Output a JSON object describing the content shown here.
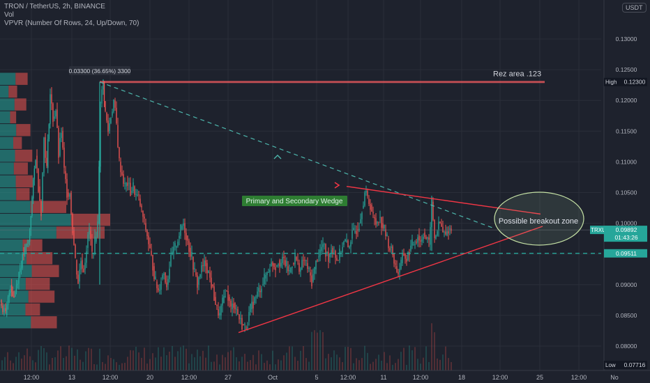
{
  "legend": {
    "symbol_line": "TRON / TetherUS, 2h, BINANCE",
    "vol_line": "Vol",
    "vpvr_line": "VPVR (Number Of Rows, 24, Up/Down, 70)"
  },
  "currency_button": "USDT",
  "chart_data": {
    "type": "candlestick",
    "y_axis": {
      "range": [
        0.0765,
        0.137
      ],
      "tick_labels": [
        "0.13000",
        "0.12500",
        "0.12000",
        "0.11500",
        "0.11000",
        "0.10500",
        "0.10000",
        "0.09500",
        "0.09000",
        "0.08500",
        "0.08000"
      ],
      "tick_values": [
        0.13,
        0.125,
        0.12,
        0.115,
        0.11,
        0.105,
        0.1,
        0.095,
        0.09,
        0.085,
        0.08
      ]
    },
    "x_axis": {
      "tick_labels": [
        "12:00",
        "13",
        "12:00",
        "20",
        "12:00",
        "27",
        "Oct",
        "5",
        "12:00",
        "11",
        "12:00",
        "18",
        "12:00",
        "25",
        "12:00",
        "No"
      ]
    },
    "price_path": [
      [
        0,
        0.0875
      ],
      [
        8,
        0.085
      ],
      [
        15,
        0.09
      ],
      [
        20,
        0.088
      ],
      [
        27,
        0.092
      ],
      [
        34,
        0.095
      ],
      [
        41,
        0.097
      ],
      [
        46,
        0.104
      ],
      [
        51,
        0.111
      ],
      [
        55,
        0.106
      ],
      [
        59,
        0.102
      ],
      [
        63,
        0.114
      ],
      [
        67,
        0.109
      ],
      [
        72,
        0.121
      ],
      [
        76,
        0.117
      ],
      [
        80,
        0.1185
      ],
      [
        84,
        0.111
      ],
      [
        88,
        0.115
      ],
      [
        92,
        0.1085
      ],
      [
        96,
        0.105
      ],
      [
        100,
        0.105
      ],
      [
        104,
        0.099
      ],
      [
        108,
        0.094
      ],
      [
        112,
        0.0905
      ],
      [
        116,
        0.094
      ],
      [
        120,
        0.0925
      ],
      [
        124,
        0.096
      ],
      [
        128,
        0.099
      ],
      [
        132,
        0.095
      ],
      [
        136,
        0.097
      ],
      [
        140,
        0.1
      ],
      [
        144,
        0.1195
      ],
      [
        148,
        0.123
      ],
      [
        151,
        0.118
      ],
      [
        155,
        0.115
      ],
      [
        159,
        0.1175
      ],
      [
        163,
        0.12
      ],
      [
        167,
        0.116
      ],
      [
        171,
        0.11
      ],
      [
        175,
        0.108
      ],
      [
        179,
        0.106
      ],
      [
        183,
        0.1065
      ],
      [
        187,
        0.105
      ],
      [
        191,
        0.106
      ],
      [
        195,
        0.1045
      ],
      [
        199,
        0.104
      ],
      [
        203,
        0.102
      ],
      [
        207,
        0.1
      ],
      [
        211,
        0.098
      ],
      [
        215,
        0.0955
      ],
      [
        219,
        0.093
      ],
      [
        223,
        0.0905
      ],
      [
        227,
        0.089
      ],
      [
        231,
        0.091
      ],
      [
        235,
        0.092
      ],
      [
        239,
        0.09
      ],
      [
        243,
        0.093
      ],
      [
        247,
        0.095
      ],
      [
        251,
        0.096
      ],
      [
        255,
        0.0975
      ],
      [
        259,
        0.099
      ],
      [
        263,
        0.1
      ],
      [
        267,
        0.098
      ],
      [
        271,
        0.096
      ],
      [
        275,
        0.0945
      ],
      [
        279,
        0.092
      ],
      [
        283,
        0.09
      ],
      [
        287,
        0.092
      ],
      [
        291,
        0.093
      ],
      [
        295,
        0.0935
      ],
      [
        299,
        0.092
      ],
      [
        303,
        0.09
      ],
      [
        307,
        0.088
      ],
      [
        311,
        0.086
      ],
      [
        315,
        0.085
      ],
      [
        319,
        0.087
      ],
      [
        323,
        0.089
      ],
      [
        327,
        0.088
      ],
      [
        331,
        0.086
      ],
      [
        335,
        0.087
      ],
      [
        339,
        0.086
      ],
      [
        343,
        0.0845
      ],
      [
        347,
        0.0835
      ],
      [
        351,
        0.083
      ],
      [
        355,
        0.084
      ],
      [
        359,
        0.086
      ],
      [
        363,
        0.087
      ],
      [
        367,
        0.088
      ],
      [
        371,
        0.089
      ],
      [
        375,
        0.09
      ],
      [
        379,
        0.091
      ],
      [
        383,
        0.092
      ],
      [
        387,
        0.093
      ],
      [
        391,
        0.0935
      ],
      [
        395,
        0.093
      ],
      [
        399,
        0.094
      ],
      [
        403,
        0.0935
      ],
      [
        407,
        0.094
      ],
      [
        411,
        0.093
      ],
      [
        415,
        0.092
      ],
      [
        419,
        0.0935
      ],
      [
        423,
        0.0945
      ],
      [
        427,
        0.0935
      ],
      [
        431,
        0.0925
      ],
      [
        435,
        0.094
      ],
      [
        439,
        0.0935
      ],
      [
        443,
        0.092
      ],
      [
        447,
        0.0905
      ],
      [
        451,
        0.0925
      ],
      [
        455,
        0.0945
      ],
      [
        459,
        0.0955
      ],
      [
        463,
        0.0965
      ],
      [
        467,
        0.095
      ],
      [
        471,
        0.0945
      ],
      [
        475,
        0.096
      ],
      [
        479,
        0.0955
      ],
      [
        483,
        0.094
      ],
      [
        487,
        0.095
      ],
      [
        491,
        0.0965
      ],
      [
        495,
        0.097
      ],
      [
        499,
        0.096
      ],
      [
        503,
        0.0975
      ],
      [
        507,
        0.0985
      ],
      [
        511,
        0.099
      ],
      [
        515,
        0.1
      ],
      [
        519,
        0.1025
      ],
      [
        523,
        0.105
      ],
      [
        527,
        0.104
      ],
      [
        531,
        0.103
      ],
      [
        535,
        0.101
      ],
      [
        539,
        0.1
      ],
      [
        543,
        0.101
      ],
      [
        547,
        0.1
      ],
      [
        551,
        0.099
      ],
      [
        555,
        0.0975
      ],
      [
        559,
        0.096
      ],
      [
        563,
        0.095
      ],
      [
        567,
        0.093
      ],
      [
        571,
        0.092
      ],
      [
        575,
        0.0935
      ],
      [
        579,
        0.095
      ],
      [
        583,
        0.094
      ],
      [
        587,
        0.0955
      ],
      [
        591,
        0.0965
      ],
      [
        595,
        0.097
      ],
      [
        599,
        0.098
      ],
      [
        603,
        0.097
      ],
      [
        607,
        0.0985
      ],
      [
        611,
        0.0975
      ],
      [
        615,
        0.0965
      ],
      [
        619,
        0.1035
      ],
      [
        623,
        0.0975
      ],
      [
        627,
        0.099
      ],
      [
        631,
        0.1
      ],
      [
        635,
        0.0985
      ],
      [
        639,
        0.098
      ],
      [
        643,
        0.099
      ],
      [
        647,
        0.0989
      ]
    ],
    "annotations": {
      "measure_label": "0.03300 (36.65%) 3300",
      "resistance_label": "Rez area .123",
      "resistance_value": 0.123,
      "wedge_label": "Primary and Secondary Wedge",
      "breakout_label": "Possible breakout zone",
      "support_dashed_value": 0.0951
    },
    "price_badges": {
      "high": {
        "label": "High",
        "value": "0.12300"
      },
      "last": {
        "symbol": "TRXUSDT",
        "value": "0.09892",
        "countdown": "01:43:26"
      },
      "support": {
        "value": "0.09511"
      },
      "low": {
        "label": "Low",
        "value": "0.07716"
      }
    },
    "colors": {
      "background": "#1e222d",
      "up": "#26a69a",
      "down": "#ef5350",
      "resistance": "#ff5e62",
      "wedge": "#f23645",
      "dashed_trend": "#4db6ac",
      "support_dashed": "#26a69a",
      "wedge_label_bg": "#2e7d32",
      "axis_text": "#b2b5be",
      "grid": "#2a2e39"
    }
  }
}
